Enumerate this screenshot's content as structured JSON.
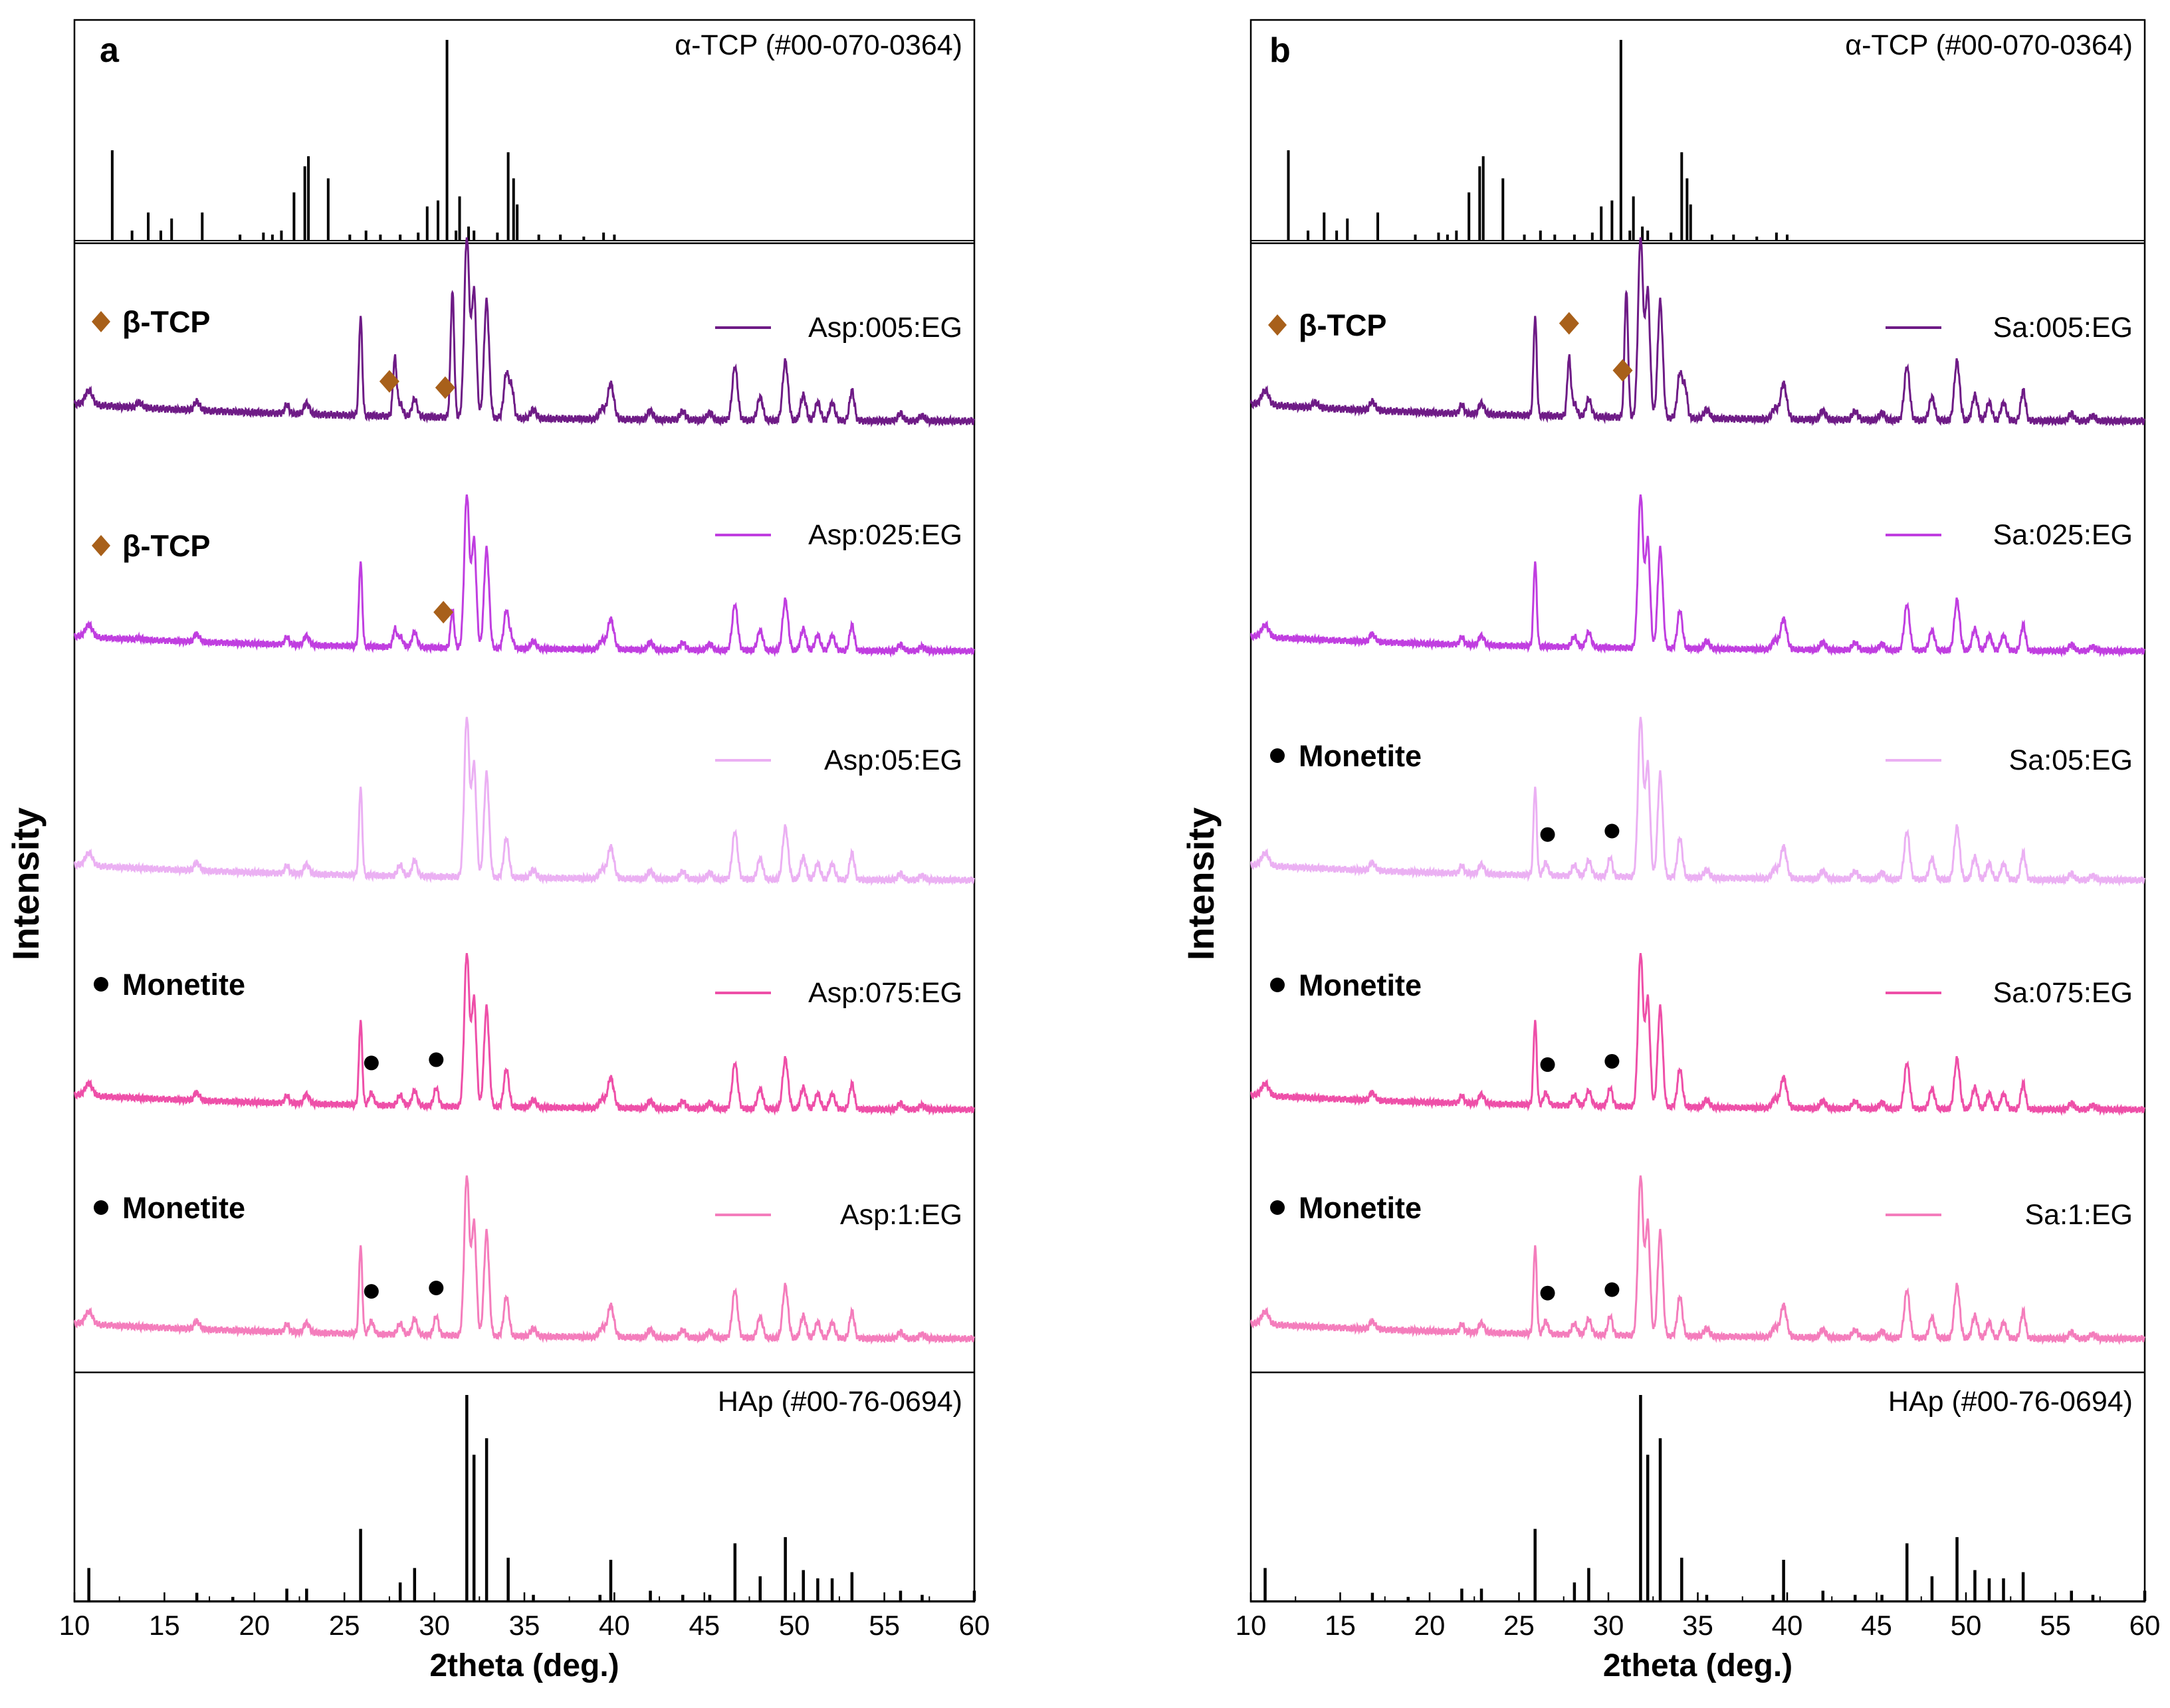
{
  "chart_data": [
    {
      "panel": "a",
      "type": "line",
      "ylabel": "Intensity",
      "xlabel": "2theta (deg.)",
      "xlim": [
        10,
        60
      ],
      "xticks": [
        "10",
        "15",
        "20",
        "25",
        "30",
        "35",
        "40",
        "45",
        "50",
        "55",
        "60"
      ],
      "top_reference": {
        "label": "α-TCP (#00-070-0364)",
        "peaks": [
          [
            12.1,
            0.45
          ],
          [
            13.2,
            0.05
          ],
          [
            14.1,
            0.14
          ],
          [
            14.8,
            0.05
          ],
          [
            15.4,
            0.11
          ],
          [
            17.1,
            0.14
          ],
          [
            19.2,
            0.03
          ],
          [
            20.5,
            0.04
          ],
          [
            21.0,
            0.03
          ],
          [
            21.5,
            0.05
          ],
          [
            22.2,
            0.24
          ],
          [
            22.8,
            0.37
          ],
          [
            23.0,
            0.42
          ],
          [
            24.1,
            0.31
          ],
          [
            25.3,
            0.03
          ],
          [
            26.2,
            0.05
          ],
          [
            27.0,
            0.03
          ],
          [
            28.1,
            0.03
          ],
          [
            29.1,
            0.04
          ],
          [
            29.6,
            0.17
          ],
          [
            30.2,
            0.2
          ],
          [
            30.7,
            1.0
          ],
          [
            31.2,
            0.05
          ],
          [
            31.4,
            0.22
          ],
          [
            31.9,
            0.07
          ],
          [
            32.2,
            0.05
          ],
          [
            33.5,
            0.04
          ],
          [
            34.1,
            0.44
          ],
          [
            34.4,
            0.31
          ],
          [
            34.6,
            0.18
          ],
          [
            35.8,
            0.03
          ],
          [
            37.0,
            0.03
          ],
          [
            38.3,
            0.02
          ],
          [
            39.4,
            0.04
          ],
          [
            40.0,
            0.03
          ]
        ]
      },
      "bottom_reference": {
        "label": "HAp (#00-76-0694)",
        "peaks": [
          [
            10.8,
            0.16
          ],
          [
            16.8,
            0.04
          ],
          [
            18.8,
            0.02
          ],
          [
            21.8,
            0.06
          ],
          [
            22.9,
            0.06
          ],
          [
            25.9,
            0.35
          ],
          [
            28.1,
            0.09
          ],
          [
            28.9,
            0.16
          ],
          [
            31.8,
            1.0
          ],
          [
            32.2,
            0.71
          ],
          [
            32.9,
            0.79
          ],
          [
            34.1,
            0.21
          ],
          [
            35.5,
            0.03
          ],
          [
            39.2,
            0.03
          ],
          [
            39.8,
            0.2
          ],
          [
            42.0,
            0.05
          ],
          [
            43.8,
            0.03
          ],
          [
            45.3,
            0.03
          ],
          [
            46.7,
            0.28
          ],
          [
            48.1,
            0.12
          ],
          [
            49.5,
            0.31
          ],
          [
            50.5,
            0.15
          ],
          [
            51.3,
            0.11
          ],
          [
            52.1,
            0.11
          ],
          [
            53.2,
            0.14
          ],
          [
            55.9,
            0.05
          ],
          [
            57.1,
            0.03
          ],
          [
            60.0,
            0.05
          ]
        ]
      },
      "series": [
        {
          "name": "Asp:005:EG",
          "color": "#6e1b86",
          "annotation": "β-TCP",
          "marker": "diamond",
          "marked_positions": [
            27.5,
            30.6
          ],
          "pattern": "tcp"
        },
        {
          "name": "Asp:025:EG",
          "color": "#c03ee0",
          "annotation": "β-TCP",
          "marker": "diamond",
          "marked_positions": [
            30.5
          ],
          "pattern": "mixed"
        },
        {
          "name": "Asp:05:EG",
          "color": "#ebb0f3",
          "annotation": "",
          "marker": "",
          "marked_positions": [],
          "pattern": "hap"
        },
        {
          "name": "Asp:075:EG",
          "color": "#ee4fa8",
          "annotation": "Monetite",
          "marker": "circle",
          "marked_positions": [
            26.5,
            30.1
          ],
          "pattern": "hap_mon"
        },
        {
          "name": "Asp:1:EG",
          "color": "#f47dbc",
          "annotation": "Monetite",
          "marker": "circle",
          "marked_positions": [
            26.5,
            30.1
          ],
          "pattern": "hap_mon"
        }
      ]
    },
    {
      "panel": "b",
      "type": "line",
      "ylabel": "Intensity",
      "xlabel": "2theta (deg.)",
      "xlim": [
        10,
        60
      ],
      "xticks": [
        "10",
        "15",
        "20",
        "25",
        "30",
        "35",
        "40",
        "45",
        "50",
        "55",
        "60"
      ],
      "top_reference": {
        "label": "α-TCP (#00-070-0364)",
        "peaks": [
          [
            12.1,
            0.45
          ],
          [
            13.2,
            0.05
          ],
          [
            14.1,
            0.14
          ],
          [
            14.8,
            0.05
          ],
          [
            15.4,
            0.11
          ],
          [
            17.1,
            0.14
          ],
          [
            19.2,
            0.03
          ],
          [
            20.5,
            0.04
          ],
          [
            21.0,
            0.03
          ],
          [
            21.5,
            0.05
          ],
          [
            22.2,
            0.24
          ],
          [
            22.8,
            0.37
          ],
          [
            23.0,
            0.42
          ],
          [
            24.1,
            0.31
          ],
          [
            25.3,
            0.03
          ],
          [
            26.2,
            0.05
          ],
          [
            27.0,
            0.03
          ],
          [
            28.1,
            0.03
          ],
          [
            29.1,
            0.04
          ],
          [
            29.6,
            0.17
          ],
          [
            30.2,
            0.2
          ],
          [
            30.7,
            1.0
          ],
          [
            31.2,
            0.05
          ],
          [
            31.4,
            0.22
          ],
          [
            31.9,
            0.07
          ],
          [
            32.2,
            0.05
          ],
          [
            33.5,
            0.04
          ],
          [
            34.1,
            0.44
          ],
          [
            34.4,
            0.31
          ],
          [
            34.6,
            0.18
          ],
          [
            35.8,
            0.03
          ],
          [
            37.0,
            0.03
          ],
          [
            38.3,
            0.02
          ],
          [
            39.4,
            0.04
          ],
          [
            40.0,
            0.03
          ]
        ]
      },
      "bottom_reference": {
        "label": "HAp (#00-76-0694)",
        "peaks": [
          [
            10.8,
            0.16
          ],
          [
            16.8,
            0.04
          ],
          [
            18.8,
            0.02
          ],
          [
            21.8,
            0.06
          ],
          [
            22.9,
            0.06
          ],
          [
            25.9,
            0.35
          ],
          [
            28.1,
            0.09
          ],
          [
            28.9,
            0.16
          ],
          [
            31.8,
            1.0
          ],
          [
            32.2,
            0.71
          ],
          [
            32.9,
            0.79
          ],
          [
            34.1,
            0.21
          ],
          [
            35.5,
            0.03
          ],
          [
            39.2,
            0.03
          ],
          [
            39.8,
            0.2
          ],
          [
            42.0,
            0.05
          ],
          [
            43.8,
            0.03
          ],
          [
            45.3,
            0.03
          ],
          [
            46.7,
            0.28
          ],
          [
            48.1,
            0.12
          ],
          [
            49.5,
            0.31
          ],
          [
            50.5,
            0.15
          ],
          [
            51.3,
            0.11
          ],
          [
            52.1,
            0.11
          ],
          [
            53.2,
            0.14
          ],
          [
            55.9,
            0.05
          ],
          [
            57.1,
            0.03
          ],
          [
            60.0,
            0.05
          ]
        ]
      },
      "series": [
        {
          "name": "Sa:005:EG",
          "color": "#6e1b86",
          "annotation": "β-TCP",
          "marker": "diamond",
          "marked_positions": [
            27.8,
            30.8
          ],
          "pattern": "tcp"
        },
        {
          "name": "Sa:025:EG",
          "color": "#c03ee0",
          "annotation": "",
          "marker": "",
          "marked_positions": [],
          "pattern": "hap"
        },
        {
          "name": "Sa:05:EG",
          "color": "#ebb0f3",
          "annotation": "Monetite",
          "marker": "circle",
          "marked_positions": [
            26.6,
            30.2
          ],
          "pattern": "hap_mon"
        },
        {
          "name": "Sa:075:EG",
          "color": "#ee4fa8",
          "annotation": "Monetite",
          "marker": "circle",
          "marked_positions": [
            26.6,
            30.2
          ],
          "pattern": "hap_mon"
        },
        {
          "name": "Sa:1:EG",
          "color": "#f47dbc",
          "annotation": "Monetite",
          "marker": "circle",
          "marked_positions": [
            26.6,
            30.2
          ],
          "pattern": "hap_mon"
        }
      ]
    }
  ],
  "colors": {
    "axis": "#000000",
    "diamond": "#a8601a",
    "dot": "#000000"
  }
}
